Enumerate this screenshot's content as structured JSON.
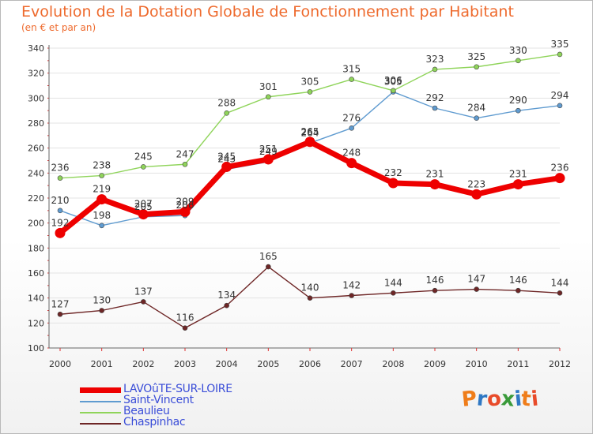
{
  "title": "Evolution de la Dotation Globale de Fonctionnement par Habitant",
  "subtitle": "(en € et par an)",
  "logo": {
    "text": "Proxiti",
    "letters": [
      "P",
      "r",
      "o",
      "x",
      "i",
      "t",
      "i"
    ],
    "colors": [
      "#ef7d1a",
      "#2f78c4",
      "#e84b2a",
      "#3a9a3a",
      "#2f78c4",
      "#ef7d1a",
      "#e84b2a"
    ]
  },
  "chart_data": {
    "type": "line",
    "title": "Evolution de la Dotation Globale de Fonctionnement par Habitant",
    "subtitle": "(en € et par an)",
    "x": [
      2000,
      2001,
      2002,
      2003,
      2004,
      2005,
      2006,
      2007,
      2008,
      2009,
      2010,
      2011,
      2012
    ],
    "x_tick_labels": [
      "2000",
      "2001",
      "2002",
      "2003",
      "2004",
      "2005",
      "2006",
      "2007",
      "2008",
      "2009",
      "2010",
      "2011",
      "2012"
    ],
    "ylim": [
      100,
      340
    ],
    "y_ticks": [
      100,
      120,
      140,
      160,
      180,
      200,
      220,
      240,
      260,
      280,
      300,
      320,
      340
    ],
    "grid": "horizontal",
    "legend_position": "bottom-left",
    "series": [
      {
        "name": "LAVOûTE-SUR-LOIRE",
        "color": "#ee0000",
        "emphasis": true,
        "values": [
          192,
          219,
          207,
          209,
          245,
          251,
          265,
          248,
          232,
          231,
          223,
          231,
          236
        ]
      },
      {
        "name": "Saint-Vincent",
        "color": "#5f9bd0",
        "values": [
          210,
          198,
          205,
          206,
          243,
          249,
          264,
          276,
          305,
          292,
          284,
          290,
          294
        ]
      },
      {
        "name": "Beaulieu",
        "color": "#8fd45a",
        "values": [
          236,
          238,
          245,
          247,
          288,
          301,
          305,
          315,
          306,
          323,
          325,
          330,
          335
        ]
      },
      {
        "name": "Chaspinhac",
        "color": "#6e2626",
        "values": [
          127,
          130,
          137,
          116,
          134,
          165,
          140,
          142,
          144,
          146,
          147,
          146,
          144
        ]
      }
    ]
  }
}
